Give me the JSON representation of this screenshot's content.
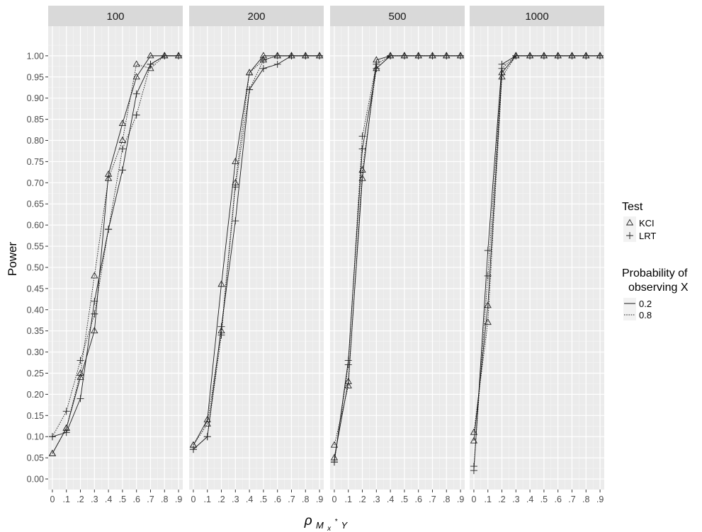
{
  "chart_data": {
    "type": "line",
    "facet_labels": [
      "100",
      "200",
      "500",
      "1000"
    ],
    "x_ticks": [
      "0",
      ".1",
      ".2",
      ".3",
      ".4",
      ".5",
      ".6",
      ".7",
      ".8",
      ".9"
    ],
    "x": [
      0,
      0.1,
      0.2,
      0.3,
      0.4,
      0.5,
      0.6,
      0.7,
      0.8,
      0.9
    ],
    "y_ticks": [
      "0.00",
      "0.05",
      "0.10",
      "0.15",
      "0.20",
      "0.25",
      "0.30",
      "0.35",
      "0.40",
      "0.45",
      "0.50",
      "0.55",
      "0.60",
      "0.65",
      "0.70",
      "0.75",
      "0.80",
      "0.85",
      "0.90",
      "0.95",
      "1.00"
    ],
    "xlim": [
      -0.03,
      0.93
    ],
    "ylim": [
      -0.025,
      1.07
    ],
    "ylabel": "Power",
    "xlabel": "ρ",
    "xlabel_sub": "M",
    "xlabel_subsub": "x",
    "xlabel_sup": "*",
    "xlabel_tail": "Y",
    "grid": true,
    "legend": {
      "position": "right",
      "test_title": "Test",
      "test_items": [
        {
          "label": "KCI",
          "shape": "triangle"
        },
        {
          "label": "LRT",
          "shape": "plus"
        }
      ],
      "prob_title_lines": [
        "Probability of",
        "observing X"
      ],
      "prob_items": [
        {
          "label": "0.2",
          "linetype": "solid"
        },
        {
          "label": "0.8",
          "linetype": "dotted"
        }
      ]
    },
    "panels": [
      {
        "facet": "100",
        "series": [
          {
            "test": "KCI",
            "prob": "0.2",
            "values": [
              0.06,
              0.12,
              0.24,
              0.35,
              0.72,
              0.84,
              0.95,
              1.0,
              1.0,
              1.0
            ]
          },
          {
            "test": "KCI",
            "prob": "0.8",
            "values": [
              0.06,
              0.12,
              0.25,
              0.48,
              0.71,
              0.8,
              0.98,
              0.97,
              1.0,
              1.0
            ]
          },
          {
            "test": "LRT",
            "prob": "0.2",
            "values": [
              0.1,
              0.11,
              0.19,
              0.42,
              0.59,
              0.73,
              0.91,
              0.98,
              1.0,
              1.0
            ]
          },
          {
            "test": "LRT",
            "prob": "0.8",
            "values": [
              0.1,
              0.16,
              0.28,
              0.39,
              0.59,
              0.78,
              0.86,
              0.98,
              1.0,
              1.0
            ]
          }
        ]
      },
      {
        "facet": "200",
        "series": [
          {
            "test": "KCI",
            "prob": "0.2",
            "values": [
              0.08,
              0.14,
              0.46,
              0.75,
              0.96,
              1.0,
              1.0,
              1.0,
              1.0,
              1.0
            ]
          },
          {
            "test": "KCI",
            "prob": "0.8",
            "values": [
              0.08,
              0.13,
              0.35,
              0.7,
              0.96,
              0.99,
              1.0,
              1.0,
              1.0,
              1.0
            ]
          },
          {
            "test": "LRT",
            "prob": "0.2",
            "values": [
              0.07,
              0.1,
              0.36,
              0.61,
              0.92,
              0.97,
              0.98,
              1.0,
              1.0,
              1.0
            ]
          },
          {
            "test": "LRT",
            "prob": "0.8",
            "values": [
              0.07,
              0.1,
              0.34,
              0.69,
              0.92,
              0.99,
              1.0,
              1.0,
              1.0,
              1.0
            ]
          }
        ]
      },
      {
        "facet": "500",
        "series": [
          {
            "test": "KCI",
            "prob": "0.2",
            "values": [
              0.05,
              0.23,
              0.71,
              0.99,
              1.0,
              1.0,
              1.0,
              1.0,
              1.0,
              1.0
            ]
          },
          {
            "test": "KCI",
            "prob": "0.8",
            "values": [
              0.08,
              0.22,
              0.73,
              0.97,
              1.0,
              1.0,
              1.0,
              1.0,
              1.0,
              1.0
            ]
          },
          {
            "test": "LRT",
            "prob": "0.2",
            "values": [
              0.04,
              0.28,
              0.78,
              0.97,
              1.0,
              1.0,
              1.0,
              1.0,
              1.0,
              1.0
            ]
          },
          {
            "test": "LRT",
            "prob": "0.8",
            "values": [
              0.04,
              0.27,
              0.81,
              0.98,
              1.0,
              1.0,
              1.0,
              1.0,
              1.0,
              1.0
            ]
          }
        ]
      },
      {
        "facet": "1000",
        "series": [
          {
            "test": "KCI",
            "prob": "0.2",
            "values": [
              0.09,
              0.41,
              0.96,
              1.0,
              1.0,
              1.0,
              1.0,
              1.0,
              1.0,
              1.0
            ]
          },
          {
            "test": "KCI",
            "prob": "0.8",
            "values": [
              0.11,
              0.37,
              0.95,
              1.0,
              1.0,
              1.0,
              1.0,
              1.0,
              1.0,
              1.0
            ]
          },
          {
            "test": "LRT",
            "prob": "0.2",
            "values": [
              0.02,
              0.54,
              0.98,
              1.0,
              1.0,
              1.0,
              1.0,
              1.0,
              1.0,
              1.0
            ]
          },
          {
            "test": "LRT",
            "prob": "0.8",
            "values": [
              0.03,
              0.48,
              0.97,
              1.0,
              1.0,
              1.0,
              1.0,
              1.0,
              1.0,
              1.0
            ]
          }
        ]
      }
    ]
  }
}
